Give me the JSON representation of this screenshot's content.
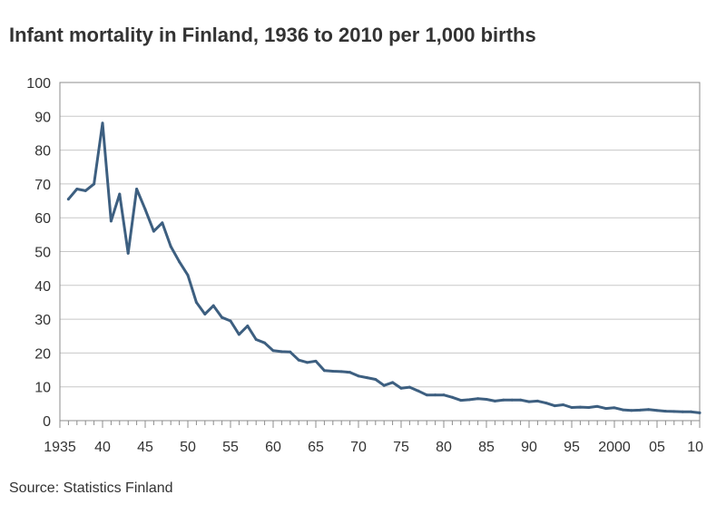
{
  "chart_data": {
    "type": "line",
    "title": "Infant mortality in Finland, 1936 to 2010 per 1,000 births",
    "source": "Source: Statistics Finland",
    "xlim": [
      1935,
      2010
    ],
    "ylim": [
      0,
      100
    ],
    "y_ticks": [
      0,
      10,
      20,
      30,
      40,
      50,
      60,
      70,
      80,
      90,
      100
    ],
    "x_ticks": [
      1935,
      1940,
      1945,
      1950,
      1955,
      1960,
      1965,
      1970,
      1975,
      1980,
      1985,
      1990,
      1995,
      2000,
      2005,
      2010
    ],
    "x_tick_labels": [
      "1935",
      "40",
      "45",
      "50",
      "55",
      "60",
      "65",
      "70",
      "75",
      "80",
      "85",
      "90",
      "95",
      "2000",
      "05",
      "10"
    ],
    "grid": "horizontal",
    "series_color": "#3d5f80",
    "x": [
      1936,
      1937,
      1938,
      1939,
      1940,
      1941,
      1942,
      1943,
      1944,
      1945,
      1946,
      1947,
      1948,
      1949,
      1950,
      1951,
      1952,
      1953,
      1954,
      1955,
      1956,
      1957,
      1958,
      1959,
      1960,
      1961,
      1962,
      1963,
      1964,
      1965,
      1966,
      1967,
      1968,
      1969,
      1970,
      1971,
      1972,
      1973,
      1974,
      1975,
      1976,
      1977,
      1978,
      1979,
      1980,
      1981,
      1982,
      1983,
      1984,
      1985,
      1986,
      1987,
      1988,
      1989,
      1990,
      1991,
      1992,
      1993,
      1994,
      1995,
      1996,
      1997,
      1998,
      1999,
      2000,
      2001,
      2002,
      2003,
      2004,
      2005,
      2006,
      2007,
      2008,
      2009,
      2010
    ],
    "values": [
      65.5,
      68.5,
      68,
      70,
      88,
      59,
      67,
      49.5,
      68.5,
      62.5,
      56,
      58.5,
      51.5,
      47,
      43,
      35,
      31.5,
      34,
      30.5,
      29.5,
      25.5,
      28,
      24,
      23,
      20.7,
      20.4,
      20.3,
      17.9,
      17.2,
      17.6,
      14.8,
      14.6,
      14.5,
      14.3,
      13.2,
      12.7,
      12.2,
      10.4,
      11.3,
      9.6,
      9.9,
      8.8,
      7.6,
      7.6,
      7.6,
      6.9,
      6.0,
      6.2,
      6.5,
      6.3,
      5.8,
      6.1,
      6.1,
      6.1,
      5.6,
      5.8,
      5.2,
      4.4,
      4.7,
      3.9,
      4.0,
      3.9,
      4.2,
      3.6,
      3.8,
      3.2,
      3.0,
      3.1,
      3.3,
      3.0,
      2.8,
      2.7,
      2.6,
      2.6,
      2.3
    ]
  }
}
